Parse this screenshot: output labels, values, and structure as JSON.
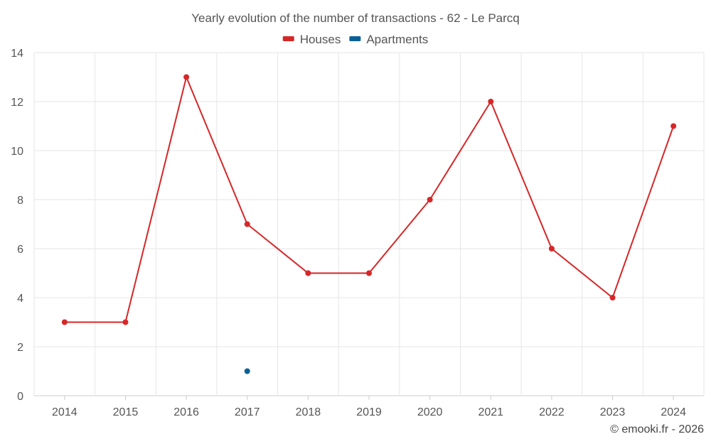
{
  "chart_data": {
    "type": "line",
    "title": "Yearly evolution of the number of transactions - 62 - Le Parcq",
    "categories": [
      "2014",
      "2015",
      "2016",
      "2017",
      "2018",
      "2019",
      "2020",
      "2021",
      "2022",
      "2023",
      "2024"
    ],
    "series": [
      {
        "name": "Houses",
        "color": "#d62728",
        "values": [
          3,
          3,
          13,
          7,
          5,
          5,
          8,
          12,
          6,
          4,
          11
        ]
      },
      {
        "name": "Apartments",
        "color": "#0b6196",
        "values": [
          null,
          null,
          null,
          1,
          null,
          null,
          null,
          null,
          null,
          null,
          null
        ]
      }
    ],
    "ylim": [
      0,
      14
    ],
    "yticks": [
      0,
      2,
      4,
      6,
      8,
      10,
      12,
      14
    ],
    "xlabel": "",
    "ylabel": "",
    "grid": true,
    "legend_position": "top-center"
  },
  "credit": "© emooki.fr - 2026"
}
